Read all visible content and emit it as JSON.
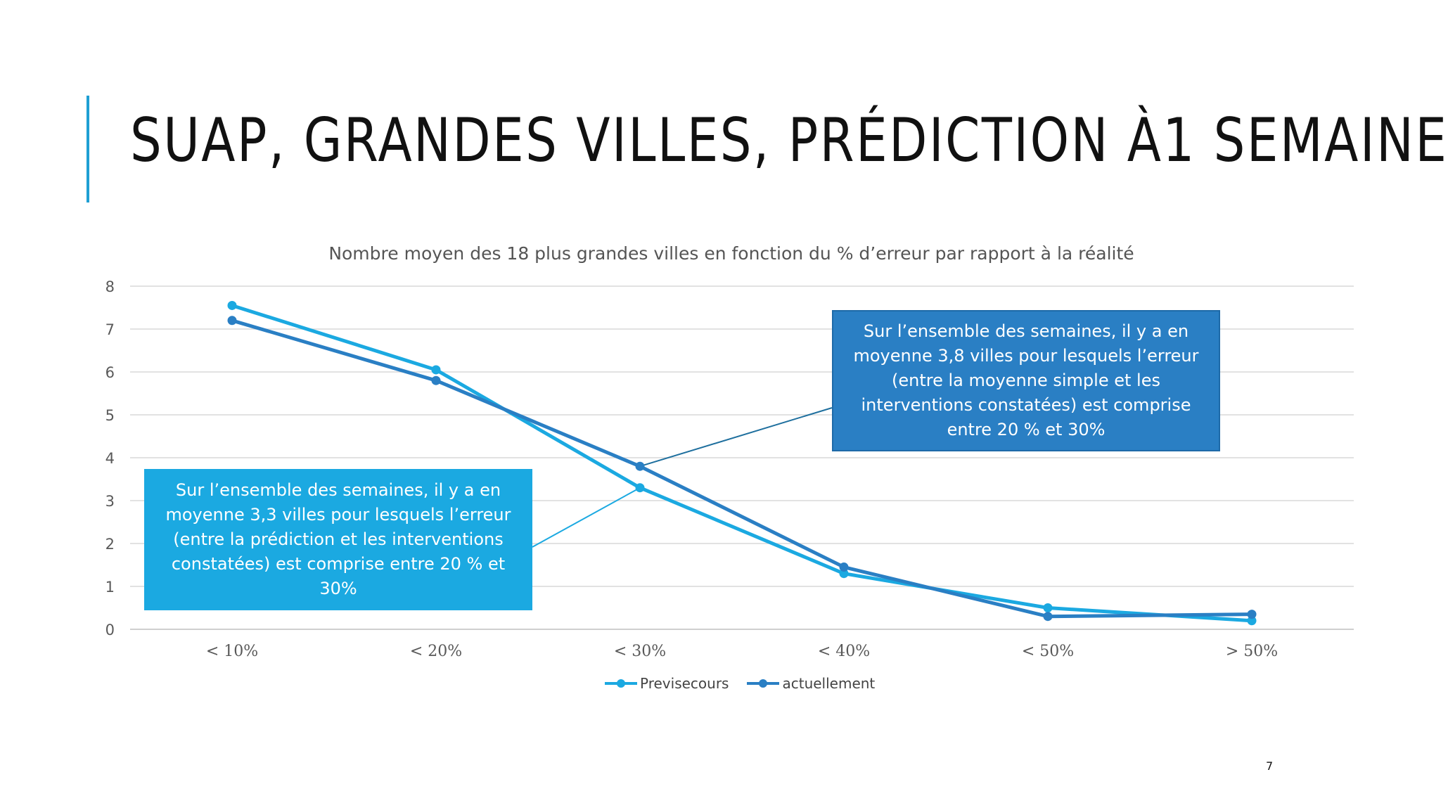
{
  "slide": {
    "title": "SUAP, GRANDES VILLES, PRÉDICTION À1 SEMAINE",
    "page_number": "7"
  },
  "chart_data": {
    "type": "line",
    "title": "Nombre moyen des 18 plus grandes villes en fonction du % d’erreur par rapport à la réalité",
    "xlabel": "",
    "ylabel": "",
    "categories": [
      "< 10%",
      "< 20%",
      "< 30%",
      "< 40%",
      "< 50%",
      "> 50%"
    ],
    "y_ticks": [
      0,
      1,
      2,
      3,
      4,
      5,
      6,
      7,
      8
    ],
    "ylim": [
      0,
      8
    ],
    "grid": true,
    "legend_position": "bottom",
    "series": [
      {
        "name": "Previsecours",
        "color": "#1ba9e1",
        "values": [
          7.55,
          6.05,
          3.3,
          1.3,
          0.5,
          0.2
        ]
      },
      {
        "name": "actuellement",
        "color": "#2a7fc4",
        "values": [
          7.2,
          5.8,
          3.8,
          1.45,
          0.3,
          0.35
        ]
      }
    ],
    "annotations": [
      {
        "text": "Sur l’ensemble des semaines, il y a en moyenne 3,3 villes pour lesquels l’erreur (entre la prédiction et les interventions constatées) est comprise entre 20 % et 30%",
        "series": "Previsecours",
        "category": "< 30%",
        "color": "#1ba9e1"
      },
      {
        "text": "Sur l’ensemble des semaines, il y a en moyenne 3,8 villes pour lesquels l’erreur (entre la moyenne simple et les interventions constatées) est comprise entre 20 % et 30%",
        "series": "actuellement",
        "category": "< 30%",
        "color": "#2a7fc4"
      }
    ]
  }
}
